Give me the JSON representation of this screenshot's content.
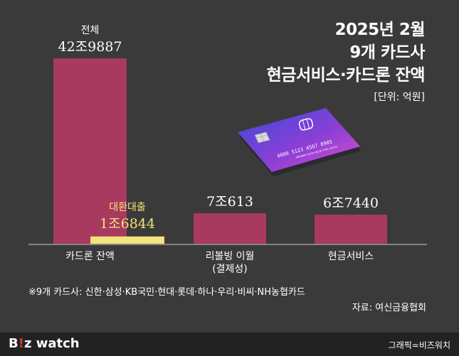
{
  "title": {
    "line1": "2025년 2월",
    "line2": "9개 카드사",
    "line3": "현금서비스·카드론 잔액",
    "unit": "[단위: 억원]"
  },
  "chart_data": {
    "type": "bar",
    "categories": [
      "카드론 잔액",
      "리볼빙 이월",
      "현금서비스"
    ],
    "category_sublabels": [
      "",
      "(결제성)",
      ""
    ],
    "series": [
      {
        "name": "",
        "values": [
          429887,
          70613,
          67440
        ],
        "labels": [
          "42조9887",
          "7조613",
          "6조7440"
        ],
        "color": "#a83a5f"
      },
      {
        "name": "",
        "values": [
          16844,
          null,
          null
        ],
        "labels": [
          "1조6844",
          "",
          ""
        ],
        "color": "#f4e27a"
      }
    ],
    "series_annotations": [
      {
        "series": 0,
        "category": 0,
        "text": "전체"
      },
      {
        "series": 1,
        "category": 0,
        "text": "대환대출"
      }
    ],
    "ylim": [
      0,
      440000
    ],
    "grid": false
  },
  "card": {
    "number": "4000 5123 4567 8905",
    "line": "MEMBER 01/24 VALID THRU 05/28"
  },
  "footnote": "※9개 카드사: 신한·삼성·KB국민·현대·롯데·하나·우리·비씨·NH농협카드",
  "source": "자료: 여신금융협회",
  "footer": {
    "logo_prefix": "B",
    "logo_mark": "!",
    "logo_suffix": "z watch",
    "credit": "그래픽=비즈워치"
  },
  "colors": {
    "background": "#3a3a3a",
    "bar_main": "#a83a5f",
    "bar_sub": "#f4e27a",
    "footer_bg": "#222222"
  }
}
